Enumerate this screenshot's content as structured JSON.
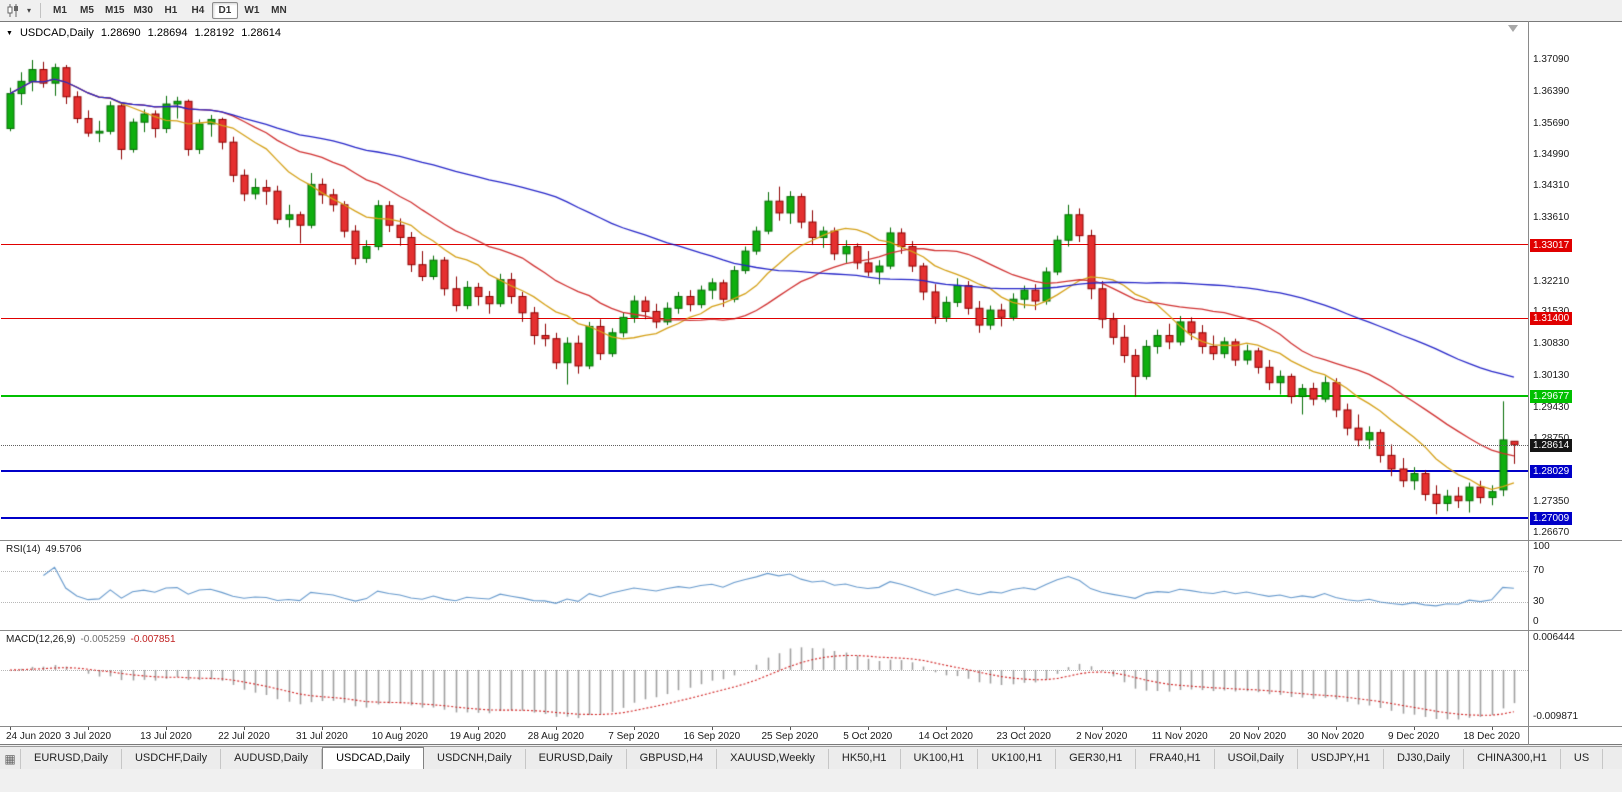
{
  "icons": {
    "symbol_marker": "▼",
    "dropdown_caret": "▾",
    "window_grid": "▦"
  },
  "toolbar": {
    "timeframes": [
      {
        "label": "M1",
        "active": false
      },
      {
        "label": "M5",
        "active": false
      },
      {
        "label": "M15",
        "active": false
      },
      {
        "label": "M30",
        "active": false
      },
      {
        "label": "H1",
        "active": false
      },
      {
        "label": "H4",
        "active": false
      },
      {
        "label": "D1",
        "active": true
      },
      {
        "label": "W1",
        "active": false
      },
      {
        "label": "MN",
        "active": false
      }
    ]
  },
  "chart": {
    "title": {
      "symbol": "USDCAD,Daily",
      "open": "1.28690",
      "high": "1.28694",
      "low": "1.28192",
      "close": "1.28614"
    },
    "price_axis_ticks": [
      "1.37090",
      "1.36390",
      "1.35690",
      "1.34990",
      "1.34310",
      "1.33610",
      "1.32910",
      "1.32210",
      "1.31530",
      "1.30830",
      "1.30130",
      "1.29430",
      "1.28750",
      "1.28050",
      "1.27350",
      "1.26670"
    ],
    "levels": [
      {
        "name": "resistance-line-upper",
        "label": "1.33017",
        "price": 1.33017,
        "color": "#e00000",
        "thickness": 1
      },
      {
        "name": "resistance-line-lower",
        "label": "1.31400",
        "price": 1.314,
        "color": "#e00000",
        "thickness": 1
      },
      {
        "name": "support-line-green",
        "label": "1.29677",
        "price": 1.29677,
        "color": "#00c000",
        "thickness": 2
      },
      {
        "name": "support-line-blue-upper",
        "label": "1.28029",
        "price": 1.28029,
        "color": "#0000c8",
        "thickness": 2
      },
      {
        "name": "support-line-blue-lower",
        "label": "1.27009",
        "price": 1.27009,
        "color": "#0000c8",
        "thickness": 2
      }
    ],
    "last_price": {
      "label": "1.28614",
      "price": 1.28614,
      "tag_color": "#151515"
    },
    "date_axis": [
      "24 Jun 2020",
      "3 Jul 2020",
      "13 Jul 2020",
      "22 Jul 2020",
      "31 Jul 2020",
      "10 Aug 2020",
      "19 Aug 2020",
      "28 Aug 2020",
      "7 Sep 2020",
      "16 Sep 2020",
      "25 Sep 2020",
      "5 Oct 2020",
      "14 Oct 2020",
      "23 Oct 2020",
      "2 Nov 2020",
      "11 Nov 2020",
      "20 Nov 2020",
      "30 Nov 2020",
      "9 Dec 2020",
      "18 Dec 2020"
    ]
  },
  "indicators": {
    "rsi": {
      "name": "RSI(14)",
      "value": "49.5706",
      "period": 14,
      "color": "#6699cc",
      "axis_labels": [
        "100",
        "70",
        "30",
        "0"
      ],
      "levels": [
        70,
        30
      ]
    },
    "macd": {
      "name": "MACD(12,26,9)",
      "value_main": "-0.005259",
      "value_signal": "-0.007851",
      "fast": 12,
      "slow": 26,
      "signal": 9,
      "axis_max": "0.006444",
      "axis_min": "-0.009871",
      "histogram_color": "#a0a0a0",
      "signal_color": "#d02020"
    }
  },
  "tabs": [
    {
      "label": "EURUSD,Daily",
      "active": false
    },
    {
      "label": "USDCHF,Daily",
      "active": false
    },
    {
      "label": "AUDUSD,Daily",
      "active": false
    },
    {
      "label": "USDCAD,Daily",
      "active": true
    },
    {
      "label": "USDCNH,Daily",
      "active": false
    },
    {
      "label": "EURUSD,Daily",
      "active": false
    },
    {
      "label": "GBPUSD,H4",
      "active": false
    },
    {
      "label": "XAUUSD,Weekly",
      "active": false
    },
    {
      "label": "HK50,H1",
      "active": false
    },
    {
      "label": "UK100,H1",
      "active": false
    },
    {
      "label": "UK100,H1",
      "active": false
    },
    {
      "label": "GER30,H1",
      "active": false
    },
    {
      "label": "FRA40,H1",
      "active": false
    },
    {
      "label": "USOil,Daily",
      "active": false
    },
    {
      "label": "USDJPY,H1",
      "active": false
    },
    {
      "label": "DJ30,Daily",
      "active": false
    },
    {
      "label": "CHINA300,H1",
      "active": false
    },
    {
      "label": "US",
      "active": false
    }
  ],
  "chart_data": {
    "type": "candlestick",
    "symbol": "USDCAD",
    "period": "Daily",
    "title": "USDCAD,Daily",
    "price_range": [
      1.26537,
      1.37927
    ],
    "rsi_range": [
      0,
      100
    ],
    "macd_range": [
      -0.009871,
      0.006444
    ],
    "date_label_step": 7,
    "candle_up": "#0faf0f",
    "candle_down": "#e53030",
    "candle_up_border": "#056d05",
    "candle_down_border": "#8e0000",
    "moving_averages": [
      {
        "period": 10,
        "color": "#d4a017"
      },
      {
        "period": 20,
        "color": "#d03030"
      },
      {
        "period": 50,
        "color": "#2424c8"
      }
    ],
    "ohlc": [
      [
        1.3558,
        1.3648,
        1.3552,
        1.3635
      ],
      [
        1.3635,
        1.3682,
        1.361,
        1.3662
      ],
      [
        1.3662,
        1.3709,
        1.364,
        1.3688
      ],
      [
        1.3688,
        1.3705,
        1.3648,
        1.3658
      ],
      [
        1.3658,
        1.3701,
        1.363,
        1.3692
      ],
      [
        1.3692,
        1.3698,
        1.3612,
        1.3628
      ],
      [
        1.3628,
        1.364,
        1.357,
        1.358
      ],
      [
        1.358,
        1.3598,
        1.354,
        1.3548
      ],
      [
        1.3548,
        1.3575,
        1.3528,
        1.3552
      ],
      [
        1.3552,
        1.3618,
        1.3545,
        1.3608
      ],
      [
        1.3608,
        1.3612,
        1.349,
        1.3512
      ],
      [
        1.3512,
        1.358,
        1.3505,
        1.3572
      ],
      [
        1.3572,
        1.36,
        1.355,
        1.359
      ],
      [
        1.359,
        1.3598,
        1.3538,
        1.3558
      ],
      [
        1.3558,
        1.363,
        1.3548,
        1.3612
      ],
      [
        1.3612,
        1.3628,
        1.358,
        1.3618
      ],
      [
        1.3618,
        1.3622,
        1.3498,
        1.3512
      ],
      [
        1.3512,
        1.3578,
        1.3502,
        1.3568
      ],
      [
        1.3568,
        1.3588,
        1.354,
        1.3578
      ],
      [
        1.3578,
        1.3582,
        1.3512,
        1.3528
      ],
      [
        1.3528,
        1.354,
        1.344,
        1.3455
      ],
      [
        1.3455,
        1.3468,
        1.3398,
        1.3414
      ],
      [
        1.3414,
        1.3448,
        1.3402,
        1.3428
      ],
      [
        1.3428,
        1.3445,
        1.339,
        1.342
      ],
      [
        1.342,
        1.3432,
        1.3348,
        1.3358
      ],
      [
        1.3358,
        1.339,
        1.334,
        1.3368
      ],
      [
        1.3368,
        1.3375,
        1.3305,
        1.3345
      ],
      [
        1.3345,
        1.346,
        1.3338,
        1.3435
      ],
      [
        1.3435,
        1.3448,
        1.3392,
        1.3412
      ],
      [
        1.3412,
        1.3425,
        1.3375,
        1.339
      ],
      [
        1.339,
        1.3398,
        1.3318,
        1.3332
      ],
      [
        1.3332,
        1.3345,
        1.3258,
        1.3272
      ],
      [
        1.3272,
        1.3312,
        1.3262,
        1.3298
      ],
      [
        1.3298,
        1.34,
        1.329,
        1.3388
      ],
      [
        1.3388,
        1.3398,
        1.333,
        1.3345
      ],
      [
        1.3345,
        1.336,
        1.33,
        1.3318
      ],
      [
        1.3318,
        1.333,
        1.3242,
        1.3258
      ],
      [
        1.3258,
        1.3288,
        1.3222,
        1.3232
      ],
      [
        1.3232,
        1.3278,
        1.3225,
        1.3268
      ],
      [
        1.3268,
        1.3275,
        1.319,
        1.3205
      ],
      [
        1.3205,
        1.3232,
        1.3155,
        1.3168
      ],
      [
        1.3168,
        1.3222,
        1.316,
        1.3208
      ],
      [
        1.3208,
        1.3218,
        1.3168,
        1.3188
      ],
      [
        1.3188,
        1.32,
        1.315,
        1.3172
      ],
      [
        1.3172,
        1.3238,
        1.3165,
        1.3225
      ],
      [
        1.3225,
        1.324,
        1.3172,
        1.3188
      ],
      [
        1.3188,
        1.3198,
        1.3132,
        1.3152
      ],
      [
        1.3152,
        1.3165,
        1.3082,
        1.3102
      ],
      [
        1.3102,
        1.3128,
        1.3078,
        1.3095
      ],
      [
        1.3095,
        1.3108,
        1.3028,
        1.3042
      ],
      [
        1.3042,
        1.3098,
        1.2994,
        1.3085
      ],
      [
        1.3085,
        1.3102,
        1.3018,
        1.3035
      ],
      [
        1.3035,
        1.3132,
        1.3028,
        1.3122
      ],
      [
        1.3122,
        1.3138,
        1.3048,
        1.3062
      ],
      [
        1.3062,
        1.3118,
        1.3055,
        1.3108
      ],
      [
        1.3108,
        1.3152,
        1.3098,
        1.3142
      ],
      [
        1.3142,
        1.319,
        1.313,
        1.3178
      ],
      [
        1.3178,
        1.3188,
        1.3138,
        1.3155
      ],
      [
        1.3155,
        1.3172,
        1.3118,
        1.3132
      ],
      [
        1.3132,
        1.3175,
        1.3125,
        1.3162
      ],
      [
        1.3162,
        1.3198,
        1.315,
        1.3188
      ],
      [
        1.3188,
        1.3202,
        1.3155,
        1.317
      ],
      [
        1.317,
        1.3212,
        1.3162,
        1.3202
      ],
      [
        1.3202,
        1.3228,
        1.3182,
        1.3218
      ],
      [
        1.3218,
        1.3225,
        1.3165,
        1.3182
      ],
      [
        1.3182,
        1.3255,
        1.3175,
        1.3245
      ],
      [
        1.3245,
        1.3298,
        1.3238,
        1.3288
      ],
      [
        1.3288,
        1.3342,
        1.328,
        1.3332
      ],
      [
        1.3332,
        1.3418,
        1.3325,
        1.3398
      ],
      [
        1.3398,
        1.343,
        1.3355,
        1.3372
      ],
      [
        1.3372,
        1.342,
        1.3348,
        1.3408
      ],
      [
        1.3408,
        1.3415,
        1.3338,
        1.3352
      ],
      [
        1.3352,
        1.3378,
        1.3302,
        1.3318
      ],
      [
        1.3318,
        1.3342,
        1.3295,
        1.3332
      ],
      [
        1.3332,
        1.334,
        1.3268,
        1.3282
      ],
      [
        1.3282,
        1.3312,
        1.3262,
        1.3298
      ],
      [
        1.3298,
        1.3305,
        1.3248,
        1.3262
      ],
      [
        1.3262,
        1.3288,
        1.3232,
        1.3242
      ],
      [
        1.3242,
        1.3268,
        1.3215,
        1.3255
      ],
      [
        1.3255,
        1.334,
        1.3248,
        1.3328
      ],
      [
        1.3328,
        1.3338,
        1.3282,
        1.3298
      ],
      [
        1.3298,
        1.331,
        1.3242,
        1.3255
      ],
      [
        1.3255,
        1.3262,
        1.318,
        1.3198
      ],
      [
        1.3198,
        1.3215,
        1.3128,
        1.3142
      ],
      [
        1.3142,
        1.3188,
        1.3132,
        1.3175
      ],
      [
        1.3175,
        1.3228,
        1.3165,
        1.3212
      ],
      [
        1.3212,
        1.3222,
        1.3148,
        1.3162
      ],
      [
        1.3162,
        1.3178,
        1.3108,
        1.3125
      ],
      [
        1.3125,
        1.3168,
        1.3115,
        1.3158
      ],
      [
        1.3158,
        1.3172,
        1.3122,
        1.3142
      ],
      [
        1.3142,
        1.3195,
        1.3135,
        1.3182
      ],
      [
        1.3182,
        1.3212,
        1.3162,
        1.3202
      ],
      [
        1.3202,
        1.3215,
        1.3158,
        1.3178
      ],
      [
        1.3178,
        1.3252,
        1.317,
        1.3242
      ],
      [
        1.3242,
        1.3322,
        1.3235,
        1.3312
      ],
      [
        1.3312,
        1.339,
        1.3298,
        1.3368
      ],
      [
        1.3368,
        1.3382,
        1.3308,
        1.3322
      ],
      [
        1.3322,
        1.3335,
        1.3182,
        1.3205
      ],
      [
        1.3205,
        1.3222,
        1.3118,
        1.3138
      ],
      [
        1.3138,
        1.3152,
        1.3082,
        1.3098
      ],
      [
        1.3098,
        1.3125,
        1.3042,
        1.3058
      ],
      [
        1.3058,
        1.3072,
        1.2968,
        1.3012
      ],
      [
        1.3012,
        1.3092,
        1.3005,
        1.3078
      ],
      [
        1.3078,
        1.3115,
        1.3062,
        1.3102
      ],
      [
        1.3102,
        1.3128,
        1.3072,
        1.3088
      ],
      [
        1.3088,
        1.3145,
        1.308,
        1.3132
      ],
      [
        1.3132,
        1.3142,
        1.3092,
        1.3108
      ],
      [
        1.3108,
        1.3125,
        1.3062,
        1.3078
      ],
      [
        1.3078,
        1.3102,
        1.3048,
        1.3062
      ],
      [
        1.3062,
        1.3098,
        1.3052,
        1.3088
      ],
      [
        1.3088,
        1.3095,
        1.3035,
        1.3048
      ],
      [
        1.3048,
        1.3082,
        1.3038,
        1.3068
      ],
      [
        1.3068,
        1.3075,
        1.3018,
        1.3032
      ],
      [
        1.3032,
        1.3048,
        1.2982,
        1.2998
      ],
      [
        1.2998,
        1.3025,
        1.2972,
        1.3012
      ],
      [
        1.3012,
        1.3018,
        1.2952,
        1.2968
      ],
      [
        1.2968,
        1.2995,
        1.2928,
        1.2985
      ],
      [
        1.2985,
        1.2998,
        1.2948,
        1.2962
      ],
      [
        1.2962,
        1.3012,
        1.2955,
        1.2998
      ],
      [
        1.2998,
        1.3008,
        1.2922,
        1.2938
      ],
      [
        1.2938,
        1.2952,
        1.2882,
        1.2898
      ],
      [
        1.2898,
        1.2928,
        1.2858,
        1.2872
      ],
      [
        1.2872,
        1.2902,
        1.2852,
        1.2888
      ],
      [
        1.2888,
        1.2895,
        1.2822,
        1.2838
      ],
      [
        1.2838,
        1.2862,
        1.2792,
        1.2808
      ],
      [
        1.2808,
        1.2832,
        1.2768,
        1.2782
      ],
      [
        1.2782,
        1.2812,
        1.2762,
        1.2798
      ],
      [
        1.2798,
        1.2805,
        1.2738,
        1.2752
      ],
      [
        1.2752,
        1.2772,
        1.2708,
        1.2732
      ],
      [
        1.2732,
        1.2762,
        1.2715,
        1.2748
      ],
      [
        1.2748,
        1.2768,
        1.2722,
        1.2738
      ],
      [
        1.2738,
        1.2778,
        1.2712,
        1.2768
      ],
      [
        1.2768,
        1.2782,
        1.2732,
        1.2745
      ],
      [
        1.2745,
        1.2772,
        1.2728,
        1.2758
      ],
      [
        1.2762,
        1.2957,
        1.2748,
        1.2872
      ],
      [
        1.2869,
        1.28694,
        1.28192,
        1.28614
      ]
    ]
  }
}
